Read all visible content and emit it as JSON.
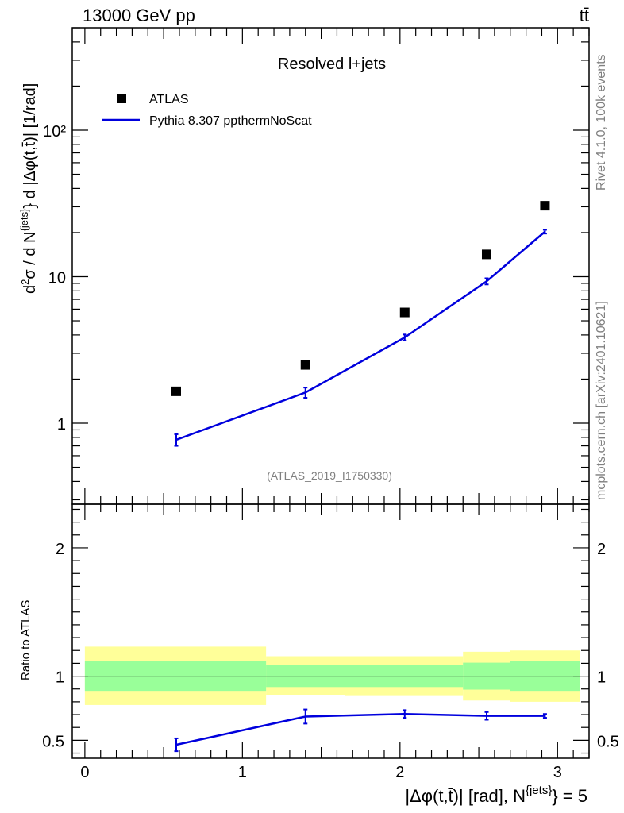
{
  "header": {
    "left": "13000 GeV pp",
    "right": "tt̄"
  },
  "side": {
    "rivet": "Rivet 4.1.0,  100k events",
    "mcplots": "mcplots.cern.ch [arXiv:2401.10621]"
  },
  "colors": {
    "mc": "#0000dd",
    "band_inner": "#99ff99",
    "band_outer": "#ffff99"
  },
  "chart_data": [
    {
      "panel": "main",
      "type": "scatter",
      "title": "Resolved l+jets",
      "analysis_label": "(ATLAS_2019_I1750330)",
      "ylabel": "d²σ / d N^{jets} d |Δφ(t,t̄)| [1/rad]",
      "yscale": "log",
      "ylim": [
        0.28,
        500
      ],
      "xlim": [
        -0.08,
        3.2
      ],
      "y_tick_labels": [
        "1",
        "10",
        "10²"
      ],
      "y_tick_values": [
        1,
        10,
        100
      ],
      "legend": {
        "position": "top-left",
        "entries": [
          "ATLAS",
          "Pythia 8.307 ppthermNoScat"
        ]
      },
      "series": [
        {
          "name": "ATLAS",
          "marker": "square",
          "x": [
            0.58,
            1.4,
            2.03,
            2.55,
            2.92
          ],
          "y": [
            1.65,
            2.5,
            5.7,
            14.2,
            30.5
          ]
        },
        {
          "name": "Pythia 8.307 ppthermNoScat",
          "marker": "line",
          "x": [
            0.58,
            1.4,
            2.03,
            2.55,
            2.92
          ],
          "y": [
            0.77,
            1.62,
            3.85,
            9.3,
            20.3
          ],
          "yerr": [
            0.07,
            0.13,
            0.18,
            0.45,
            0.6
          ]
        }
      ]
    },
    {
      "panel": "ratio",
      "type": "line",
      "ylabel": "Ratio to ATLAS",
      "xlabel": "|Δφ(t,t̄)| [rad], N^{jets} = 5",
      "ylim": [
        0.36,
        2.34
      ],
      "xlim": [
        -0.08,
        3.2
      ],
      "x_tick_labels": [
        "0",
        "1",
        "2",
        "3"
      ],
      "x_tick_values": [
        0,
        1,
        2,
        3
      ],
      "y_tick_labels": [
        "0.5",
        "1",
        "2"
      ],
      "y_tick_values": [
        0.5,
        1,
        2
      ],
      "bands": [
        {
          "x0": 0.0,
          "x1": 1.15,
          "inner": [
            0.885,
            1.115
          ],
          "outer": [
            0.775,
            1.23
          ]
        },
        {
          "x0": 1.15,
          "x1": 1.65,
          "inner": [
            0.915,
            1.085
          ],
          "outer": [
            0.85,
            1.155
          ]
        },
        {
          "x0": 1.65,
          "x1": 2.4,
          "inner": [
            0.915,
            1.085
          ],
          "outer": [
            0.845,
            1.155
          ]
        },
        {
          "x0": 2.4,
          "x1": 2.7,
          "inner": [
            0.895,
            1.105
          ],
          "outer": [
            0.81,
            1.19
          ]
        },
        {
          "x0": 2.7,
          "x1": 3.14,
          "inner": [
            0.885,
            1.115
          ],
          "outer": [
            0.8,
            1.2
          ]
        }
      ],
      "series": [
        {
          "name": "Pythia 8.307 ppthermNoScat / ATLAS",
          "x": [
            0.58,
            1.4,
            2.03,
            2.55,
            2.92
          ],
          "y": [
            0.465,
            0.685,
            0.705,
            0.69,
            0.69
          ],
          "yerr": [
            0.05,
            0.055,
            0.03,
            0.03,
            0.015
          ]
        }
      ]
    }
  ]
}
